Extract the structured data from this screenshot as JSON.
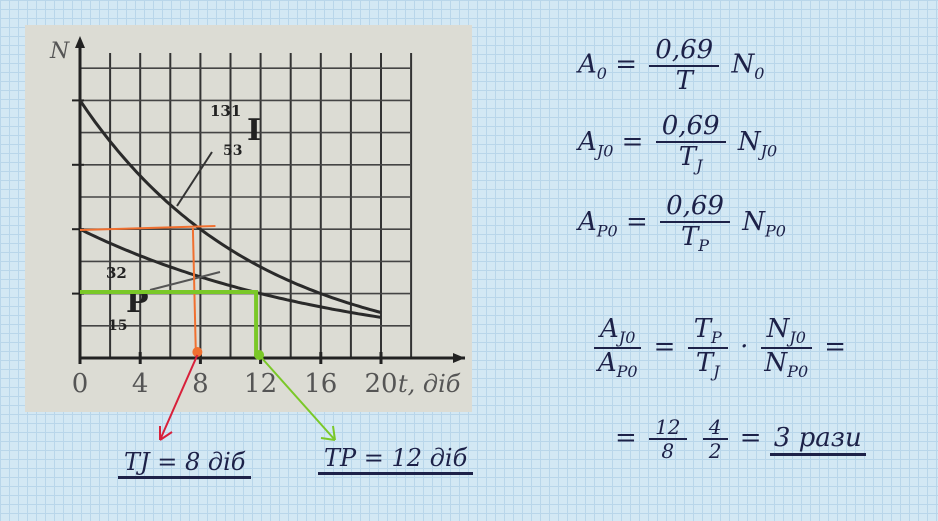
{
  "equations": {
    "eq1": {
      "lhs": "A",
      "lhs_sub": "0",
      "num": "0,69",
      "den": "T",
      "rhs": "N",
      "rhs_sub": "0"
    },
    "eq2": {
      "lhs": "A",
      "lhs_sub": "J0",
      "num": "0,69",
      "den": "T",
      "den_sub": "J",
      "rhs": "N",
      "rhs_sub": "J0"
    },
    "eq3": {
      "lhs": "A",
      "lhs_sub": "P0",
      "num": "0,69",
      "den": "T",
      "den_sub": "P",
      "rhs": "N",
      "rhs_sub": "P0"
    },
    "eq4": {
      "l_num": "A",
      "l_num_sub": "J0",
      "l_den": "A",
      "l_den_sub": "P0",
      "f1_num": "T",
      "f1_num_sub": "P",
      "f1_den": "T",
      "f1_den_sub": "J",
      "f2_num": "N",
      "f2_num_sub": "J0",
      "f2_den": "N",
      "f2_den_sub": "P0"
    },
    "eq5": {
      "f1_num": "12",
      "f1_den": "8",
      "f2_num": "4",
      "f2_den": "2",
      "answer": "3 рази"
    }
  },
  "results": {
    "tj": "TJ = 8 діб",
    "tp": "TP = 12 діб"
  },
  "chart_data": {
    "type": "line",
    "xlabel": "t, діб",
    "ylabel": "N",
    "x_ticks": [
      "0",
      "4",
      "8",
      "12",
      "16",
      "20"
    ],
    "xlim": [
      0,
      22
    ],
    "grid": true,
    "series": [
      {
        "labels": [
          "131",
          "53",
          "I"
        ],
        "N0": 8,
        "half_life": 8,
        "t_end": 20
      },
      {
        "labels": [
          "32",
          "15",
          "P"
        ],
        "N0": 4,
        "half_life": 12,
        "t_end": 20
      }
    ],
    "colors": {
      "tj_marker": "#f07030",
      "tp_marker": "#7ac828",
      "arrow_tj": "#d8203a",
      "ink": "#1d2148"
    }
  }
}
